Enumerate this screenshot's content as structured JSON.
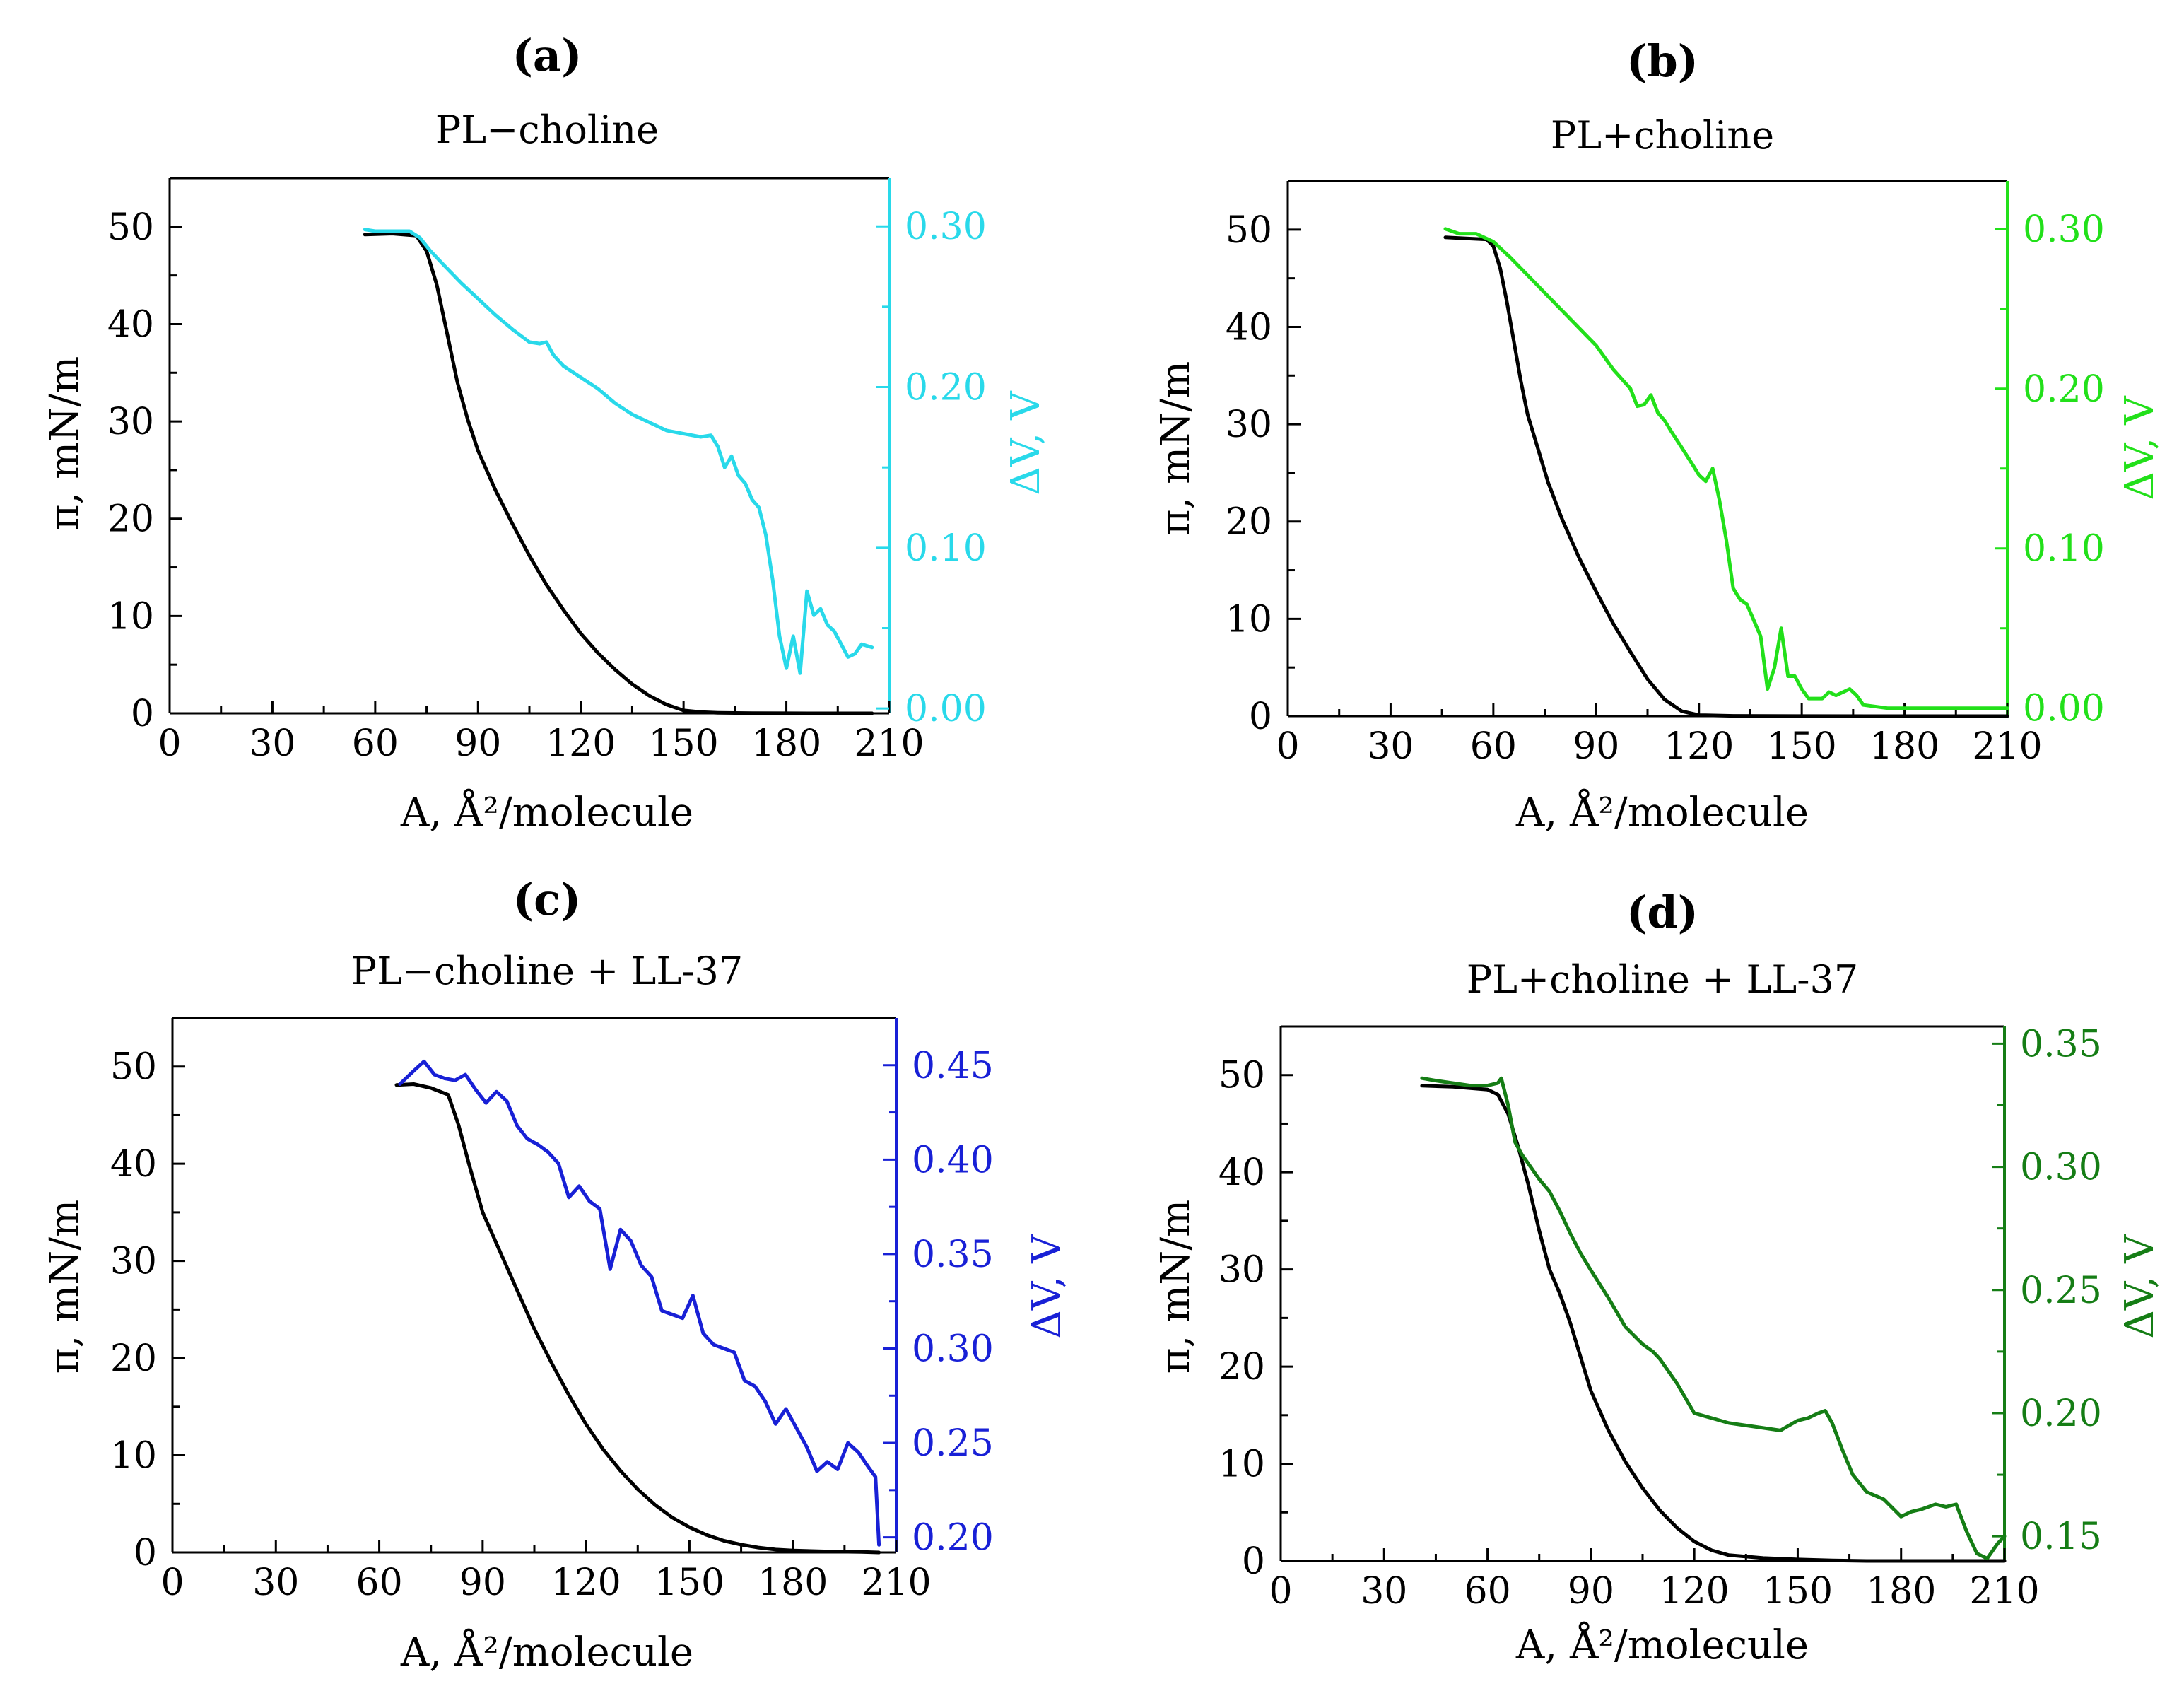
{
  "chart_data": [
    {
      "type": "line",
      "panel_tag": "(a)",
      "title": "PL−choline",
      "xlabel": "A, Å²/molecule",
      "ylabel": "π, mN/m",
      "y2label": "ΔV, V",
      "xlim": [
        0,
        210
      ],
      "ylim": [
        0,
        55
      ],
      "y2lim": [
        -0.003,
        0.33
      ],
      "x_ticks": [
        "0",
        "30",
        "60",
        "90",
        "120",
        "150",
        "180",
        "210"
      ],
      "y_ticks": [
        "0",
        "10",
        "20",
        "30",
        "40",
        "50"
      ],
      "y2_ticks": [
        "0.00",
        "0.10",
        "0.20",
        "0.30"
      ],
      "y2_tick_values": [
        0.0,
        0.1,
        0.2,
        0.3
      ],
      "y2_color": "#29d9ea",
      "series": [
        {
          "name": "π",
          "axis": "left",
          "color": "#000000",
          "x": [
            57,
            65,
            72,
            75,
            78,
            81,
            84,
            87,
            90,
            95,
            100,
            105,
            110,
            115,
            120,
            125,
            130,
            135,
            140,
            145,
            150,
            155,
            160,
            170,
            180,
            190,
            200,
            205
          ],
          "y": [
            49.2,
            49.3,
            49.1,
            47.5,
            44,
            39,
            34,
            30.2,
            27,
            23,
            19.5,
            16.2,
            13.2,
            10.6,
            8.2,
            6.2,
            4.5,
            3.0,
            1.8,
            0.9,
            0.3,
            0.12,
            0.05,
            0.02,
            0.01,
            0.0,
            0.0,
            0.0
          ]
        },
        {
          "name": "ΔV",
          "axis": "right",
          "color": "#29d9ea",
          "x": [
            57,
            60,
            65,
            70,
            73,
            76,
            80,
            85,
            90,
            95,
            100,
            105,
            108,
            110,
            112,
            115,
            120,
            125,
            130,
            135,
            140,
            145,
            150,
            155,
            158,
            160,
            162,
            164,
            166,
            168,
            170,
            172,
            174,
            176,
            178,
            180,
            182,
            184,
            186,
            188,
            190,
            192,
            194,
            196,
            198,
            200,
            202,
            205
          ],
          "y": [
            0.298,
            0.297,
            0.297,
            0.297,
            0.293,
            0.285,
            0.276,
            0.265,
            0.255,
            0.245,
            0.236,
            0.228,
            0.227,
            0.228,
            0.22,
            0.213,
            0.206,
            0.199,
            0.19,
            0.183,
            0.178,
            0.173,
            0.171,
            0.169,
            0.17,
            0.163,
            0.15,
            0.157,
            0.145,
            0.14,
            0.13,
            0.125,
            0.108,
            0.08,
            0.045,
            0.025,
            0.045,
            0.022,
            0.073,
            0.058,
            0.062,
            0.052,
            0.048,
            0.04,
            0.032,
            0.034,
            0.04,
            0.038
          ]
        }
      ]
    },
    {
      "type": "line",
      "panel_tag": "(b)",
      "title": "PL+choline",
      "xlabel": "A, Å²/molecule",
      "ylabel": "π, mN/m",
      "y2label": "ΔV, V",
      "xlim": [
        0,
        210
      ],
      "ylim": [
        0,
        55
      ],
      "y2lim": [
        -0.005,
        0.33
      ],
      "x_ticks": [
        "0",
        "30",
        "60",
        "90",
        "120",
        "150",
        "180",
        "210"
      ],
      "y_ticks": [
        "0",
        "10",
        "20",
        "30",
        "40",
        "50"
      ],
      "y2_ticks": [
        "0.00",
        "0.10",
        "0.20",
        "0.30"
      ],
      "y2_tick_values": [
        0.0,
        0.1,
        0.2,
        0.3
      ],
      "y2_color": "#22e01a",
      "series": [
        {
          "name": "π",
          "axis": "left",
          "color": "#000000",
          "x": [
            46,
            52,
            58,
            60,
            62,
            64,
            66,
            68,
            70,
            73,
            76,
            80,
            85,
            90,
            95,
            100,
            105,
            110,
            115,
            120,
            130,
            150,
            170,
            190,
            210
          ],
          "y": [
            49.2,
            49.1,
            49.0,
            48.3,
            46,
            42.5,
            38.5,
            34.5,
            31,
            27.5,
            24,
            20.3,
            16.3,
            12.8,
            9.5,
            6.6,
            3.8,
            1.7,
            0.5,
            0.1,
            0.03,
            0.01,
            0.0,
            0.0,
            0.0
          ]
        },
        {
          "name": "ΔV",
          "axis": "right",
          "color": "#22e01a",
          "x": [
            46,
            50,
            55,
            60,
            65,
            70,
            75,
            80,
            85,
            90,
            95,
            100,
            102,
            104,
            106,
            108,
            110,
            112,
            115,
            118,
            120,
            122,
            124,
            126,
            128,
            130,
            132,
            134,
            136,
            138,
            140,
            142,
            144,
            146,
            148,
            150,
            152,
            154,
            156,
            158,
            160,
            162,
            164,
            166,
            168,
            175,
            190,
            210
          ],
          "y": [
            0.3,
            0.297,
            0.297,
            0.292,
            0.282,
            0.271,
            0.26,
            0.249,
            0.238,
            0.227,
            0.212,
            0.2,
            0.189,
            0.19,
            0.196,
            0.185,
            0.18,
            0.173,
            0.163,
            0.153,
            0.146,
            0.142,
            0.15,
            0.13,
            0.105,
            0.075,
            0.068,
            0.065,
            0.055,
            0.045,
            0.012,
            0.025,
            0.05,
            0.02,
            0.02,
            0.012,
            0.006,
            0.006,
            0.006,
            0.01,
            0.008,
            0.01,
            0.012,
            0.008,
            0.002,
            0.0,
            0.0,
            0.0
          ]
        }
      ]
    },
    {
      "type": "line",
      "panel_tag": "(c)",
      "title": "PL−choline + LL-37",
      "xlabel": "A, Å²/molecule",
      "ylabel": "π, mN/m",
      "y2label": "ΔV, V",
      "xlim": [
        0,
        210
      ],
      "ylim": [
        0,
        55
      ],
      "y2lim": [
        0.192,
        0.475
      ],
      "x_ticks": [
        "0",
        "30",
        "60",
        "90",
        "120",
        "150",
        "180",
        "210"
      ],
      "y_ticks": [
        "0",
        "10",
        "20",
        "30",
        "40",
        "50"
      ],
      "y2_ticks": [
        "0.20",
        "0.25",
        "0.30",
        "0.35",
        "0.40",
        "0.45"
      ],
      "y2_tick_values": [
        0.2,
        0.25,
        0.3,
        0.35,
        0.4,
        0.45
      ],
      "y2_color": "#1820d6",
      "series": [
        {
          "name": "π",
          "axis": "left",
          "color": "#000000",
          "x": [
            65,
            70,
            75,
            80,
            83,
            86,
            90,
            95,
            100,
            105,
            110,
            115,
            120,
            125,
            130,
            135,
            140,
            145,
            150,
            155,
            160,
            165,
            170,
            175,
            180,
            190,
            200,
            205
          ],
          "y": [
            48.1,
            48.2,
            47.8,
            47.1,
            44,
            40,
            35,
            31,
            27,
            23,
            19.5,
            16.2,
            13.2,
            10.6,
            8.4,
            6.5,
            4.9,
            3.6,
            2.6,
            1.8,
            1.2,
            0.8,
            0.5,
            0.3,
            0.2,
            0.1,
            0.05,
            0.0
          ]
        },
        {
          "name": "ΔV",
          "axis": "right",
          "color": "#1820d6",
          "x": [
            66,
            70,
            73,
            76,
            79,
            82,
            85,
            88,
            91,
            94,
            97,
            100,
            103,
            106,
            109,
            112,
            115,
            118,
            121,
            124,
            127,
            130,
            133,
            136,
            139,
            142,
            145,
            148,
            151,
            154,
            157,
            160,
            163,
            166,
            169,
            172,
            175,
            178,
            181,
            184,
            187,
            190,
            193,
            196,
            199,
            202,
            204,
            205
          ],
          "y": [
            0.44,
            0.447,
            0.452,
            0.445,
            0.443,
            0.442,
            0.445,
            0.437,
            0.43,
            0.436,
            0.431,
            0.418,
            0.411,
            0.408,
            0.404,
            0.398,
            0.38,
            0.386,
            0.378,
            0.374,
            0.342,
            0.363,
            0.357,
            0.344,
            0.338,
            0.32,
            0.318,
            0.316,
            0.328,
            0.308,
            0.302,
            0.3,
            0.298,
            0.283,
            0.28,
            0.272,
            0.26,
            0.268,
            0.258,
            0.248,
            0.235,
            0.24,
            0.236,
            0.25,
            0.245,
            0.237,
            0.232,
            0.196
          ]
        }
      ]
    },
    {
      "type": "line",
      "panel_tag": "(d)",
      "title": "PL+choline + LL-37",
      "xlabel": "A, Å²/molecule",
      "ylabel": "π, mN/m",
      "y2label": "ΔV, V",
      "xlim": [
        0,
        210
      ],
      "ylim": [
        0,
        55
      ],
      "y2lim": [
        0.14,
        0.357
      ],
      "x_ticks": [
        "0",
        "30",
        "60",
        "90",
        "120",
        "150",
        "180",
        "210"
      ],
      "y_ticks": [
        "0",
        "10",
        "20",
        "30",
        "40",
        "50"
      ],
      "y2_ticks": [
        "0.15",
        "0.20",
        "0.25",
        "0.30",
        "0.35"
      ],
      "y2_tick_values": [
        0.15,
        0.2,
        0.25,
        0.3,
        0.35
      ],
      "y2_color": "#157d15",
      "series": [
        {
          "name": "π",
          "axis": "left",
          "color": "#000000",
          "x": [
            41,
            50,
            60,
            63,
            66,
            69,
            72,
            75,
            78,
            81,
            84,
            87,
            90,
            95,
            100,
            105,
            110,
            115,
            120,
            125,
            130,
            140,
            150,
            160,
            170,
            180,
            190,
            200,
            210
          ],
          "y": [
            48.9,
            48.8,
            48.5,
            48.0,
            46,
            42.5,
            38.5,
            34,
            30,
            27.5,
            24.5,
            21,
            17.5,
            13.5,
            10.2,
            7.5,
            5.2,
            3.4,
            2.0,
            1.1,
            0.6,
            0.3,
            0.15,
            0.05,
            0.0,
            0.0,
            0.0,
            0.0,
            0.0
          ]
        },
        {
          "name": "ΔV",
          "axis": "right",
          "color": "#157d15",
          "x": [
            41,
            45,
            50,
            55,
            60,
            63,
            64,
            66,
            68,
            70,
            72,
            75,
            78,
            81,
            84,
            87,
            90,
            95,
            100,
            105,
            108,
            110,
            115,
            120,
            125,
            130,
            135,
            140,
            145,
            150,
            153,
            156,
            158,
            160,
            163,
            166,
            170,
            175,
            180,
            183,
            186,
            190,
            193,
            196,
            199,
            202,
            205,
            208,
            210
          ],
          "y": [
            0.336,
            0.335,
            0.334,
            0.333,
            0.333,
            0.334,
            0.336,
            0.325,
            0.31,
            0.305,
            0.301,
            0.295,
            0.29,
            0.282,
            0.273,
            0.265,
            0.258,
            0.247,
            0.235,
            0.228,
            0.225,
            0.222,
            0.212,
            0.2,
            0.198,
            0.196,
            0.195,
            0.194,
            0.193,
            0.197,
            0.198,
            0.2,
            0.201,
            0.196,
            0.185,
            0.175,
            0.168,
            0.165,
            0.158,
            0.16,
            0.161,
            0.163,
            0.162,
            0.163,
            0.152,
            0.143,
            0.141,
            0.147,
            0.15
          ]
        }
      ]
    }
  ]
}
